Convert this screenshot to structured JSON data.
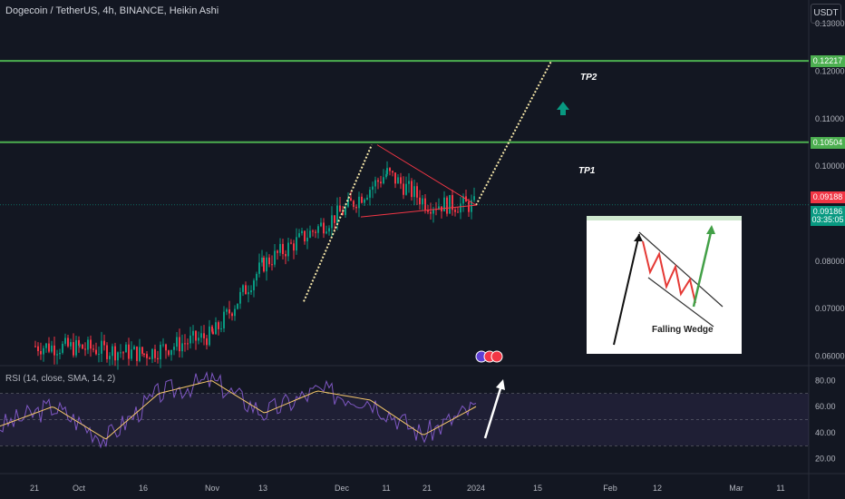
{
  "header": {
    "symbol_title": "Dogecoin / TetherUS, 4h, BINANCE, Heikin Ashi",
    "currency_button": "USDT"
  },
  "price_axis": {
    "ticks": [
      "0.13000",
      "0.12000",
      "0.11000",
      "0.10000",
      "0.08000",
      "0.07000",
      "0.06000"
    ],
    "tags": [
      {
        "label": "0.12217",
        "color": "#4caf50",
        "text_color": "#ffffff"
      },
      {
        "label": "0.10504",
        "color": "#4caf50",
        "text_color": "#ffffff"
      },
      {
        "label": "0.09188",
        "color": "#f23645",
        "text_color": "#ffffff"
      },
      {
        "label": "0.09186",
        "color": "#089981",
        "text_color": "#ffffff"
      },
      {
        "label": "03:35:05",
        "color": "#089981",
        "text_color": "#ffffff"
      }
    ]
  },
  "annotations": {
    "tp2": "TP2",
    "tp1": "TP1",
    "inset_caption": "Falling Wedge"
  },
  "rsi": {
    "title": "RSI (14, close, SMA, 14, 2)",
    "ticks": [
      "80.00",
      "60.00",
      "40.00",
      "20.00"
    ]
  },
  "time_axis": {
    "labels": [
      "21",
      "Oct",
      "16",
      "Nov",
      "13",
      "Dec",
      "11",
      "21",
      "2024",
      "15",
      "Feb",
      "12",
      "Mar",
      "11"
    ]
  },
  "colors": {
    "background": "#131722",
    "up": "#089981",
    "down": "#f23645",
    "tp_line": "#4caf50",
    "projection": "#f5e6a8",
    "wedge": "#f23645",
    "rsi_line": "#7e57c2",
    "rsi_ma": "#f5c76a"
  },
  "chart_data": [
    {
      "type": "candlestick",
      "title": "Dogecoin / TetherUS, 4h, BINANCE, Heikin Ashi",
      "ylim": [
        0.058,
        0.135
      ],
      "horizontal_levels": [
        {
          "name": "TP2",
          "value": 0.12217
        },
        {
          "name": "TP1",
          "value": 0.10504
        }
      ],
      "last_price": 0.09186,
      "x_labels": [
        "21",
        "Oct",
        "16",
        "Nov",
        "13",
        "Dec",
        "11",
        "21",
        "2024",
        "15",
        "Feb",
        "12",
        "Mar",
        "11"
      ],
      "close_path": [
        [
          "21",
          0.0621
        ],
        [
          "Oct",
          0.0618
        ],
        [
          "16",
          0.0605
        ],
        [
          "Nov",
          0.0645
        ],
        [
          "13",
          0.0795
        ],
        [
          "Dec",
          0.0905
        ],
        [
          "11",
          0.0985
        ],
        [
          "21",
          0.092
        ],
        [
          "2024",
          0.0918
        ]
      ],
      "projection": [
        [
          "2024",
          0.0918
        ],
        [
          "15",
          0.1221
        ]
      ]
    },
    {
      "type": "line",
      "title": "RSI (14, close, SMA, 14, 2)",
      "ylim": [
        10,
        90
      ],
      "bands": [
        70,
        30
      ],
      "x_labels": [
        "21",
        "Oct",
        "16",
        "Nov",
        "13",
        "Dec",
        "11",
        "21",
        "2024"
      ],
      "series": [
        {
          "values": [
            45,
            60,
            35,
            70,
            80,
            55,
            72,
            65,
            38,
            60
          ]
        }
      ]
    }
  ]
}
